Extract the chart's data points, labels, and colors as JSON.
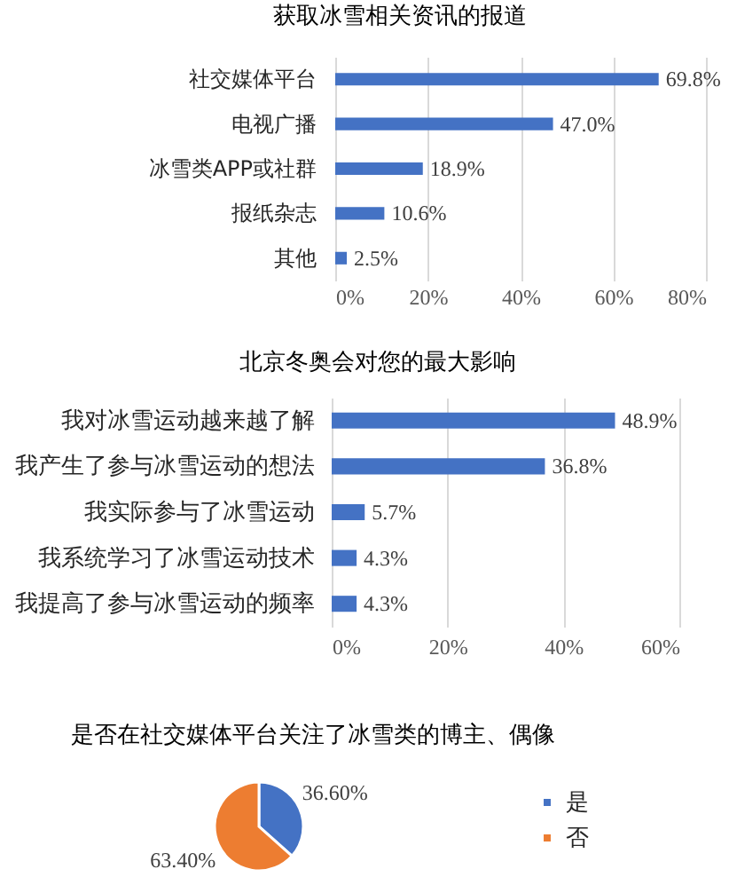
{
  "chart_data": [
    {
      "type": "bar",
      "orientation": "horizontal",
      "title": "获取冰雪相关资讯的报道",
      "categories": [
        "社交媒体平台",
        "电视广播",
        "冰雪类APP或社群",
        "报纸杂志",
        "其他"
      ],
      "values": [
        69.8,
        47.0,
        18.9,
        10.6,
        2.5
      ],
      "value_labels": [
        "69.8%",
        "47.0%",
        "18.9%",
        "10.6%",
        "2.5%"
      ],
      "color": "#4472c4",
      "xlim": [
        0,
        80
      ],
      "xticks": [
        {
          "value": 0,
          "label": "0%"
        },
        {
          "value": 20,
          "label": "20%"
        },
        {
          "value": 40,
          "label": "40%"
        },
        {
          "value": 60,
          "label": "60%"
        },
        {
          "value": 80,
          "label": "80%"
        }
      ],
      "grid": "x"
    },
    {
      "type": "bar",
      "orientation": "horizontal",
      "title": "北京冬奥会对您的最大影响",
      "categories": [
        "我对冰雪运动越来越了解",
        "我产生了参与冰雪运动的想法",
        "我实际参与了冰雪运动",
        "我系统学习了冰雪运动技术",
        "我提高了参与冰雪运动的频率"
      ],
      "values": [
        48.9,
        36.8,
        5.7,
        4.3,
        4.3
      ],
      "value_labels": [
        "48.9%",
        "36.8%",
        "5.7%",
        "4.3%",
        "4.3%"
      ],
      "color": "#4472c4",
      "xlim": [
        0,
        60
      ],
      "xticks": [
        {
          "value": 0,
          "label": "0%"
        },
        {
          "value": 20,
          "label": "20%"
        },
        {
          "value": 40,
          "label": "40%"
        },
        {
          "value": 60,
          "label": "60%"
        }
      ],
      "grid": "x"
    },
    {
      "type": "pie",
      "title": "是否在社交媒体平台关注了冰雪类的博主、偶像",
      "categories": [
        "是",
        "否"
      ],
      "values": [
        36.6,
        63.4
      ],
      "value_labels": [
        "36.60%",
        "63.40%"
      ],
      "colors": [
        "#4472c4",
        "#ed7d31"
      ],
      "legend": "right"
    }
  ]
}
